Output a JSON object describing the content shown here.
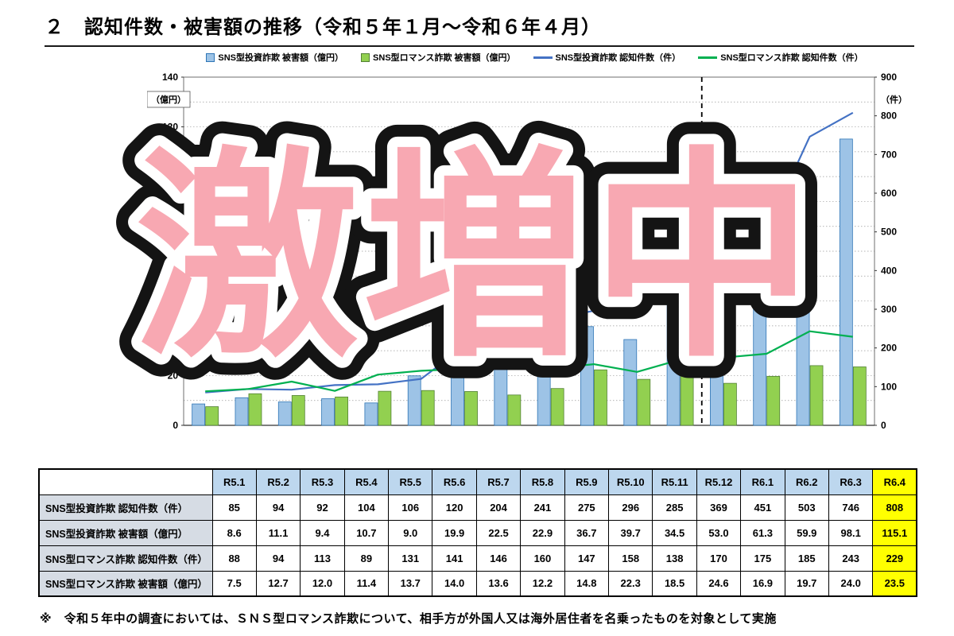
{
  "title": "２　認知件数・被害額の推移（令和５年１月～令和６年４月）",
  "overlay_text": "激増中",
  "footnote": "※　令和５年中の調査においては、ＳＮＳ型ロマンス詐欺について、相手方が外国人又は海外居住者を名乗ったものを対象として実施",
  "chart_data": {
    "type": "combo",
    "categories": [
      "R5.1",
      "R5.2",
      "R5.3",
      "R5.4",
      "R5.5",
      "R5.6",
      "R5.7",
      "R5.8",
      "R5.9",
      "R5.10",
      "R5.11",
      "R5.12",
      "R6.1",
      "R6.2",
      "R6.3",
      "R6.4"
    ],
    "series": [
      {
        "name": "SNS型投資詐欺 被害額（億円）",
        "type": "bar",
        "axis": "left",
        "color": "#9DC3E6",
        "border": "#2E75B6",
        "values": [
          8.6,
          11.1,
          9.4,
          10.7,
          9.0,
          19.9,
          22.5,
          22.9,
          36.7,
          39.7,
          34.5,
          53.0,
          61.3,
          59.9,
          98.1,
          115.1
        ]
      },
      {
        "name": "SNS型ロマンス詐欺 被害額（億円）",
        "type": "bar",
        "axis": "left",
        "color": "#92D050",
        "border": "#538135",
        "values": [
          7.5,
          12.7,
          12.0,
          11.4,
          13.7,
          14.0,
          13.6,
          12.2,
          14.8,
          22.3,
          18.5,
          24.6,
          16.9,
          19.7,
          24.0,
          23.5
        ]
      },
      {
        "name": "SNS型投資詐欺 認知件数（件）",
        "type": "line",
        "axis": "right",
        "color": "#4472C4",
        "values": [
          85,
          94,
          92,
          104,
          106,
          120,
          204,
          241,
          275,
          296,
          285,
          369,
          451,
          503,
          746,
          808
        ]
      },
      {
        "name": "SNS型ロマンス詐欺 認知件数（件）",
        "type": "line",
        "axis": "right",
        "color": "#00B050",
        "values": [
          88,
          94,
          113,
          89,
          131,
          141,
          146,
          160,
          147,
          158,
          138,
          170,
          175,
          185,
          243,
          229
        ]
      }
    ],
    "left_axis": {
      "unit": "（億円）",
      "min": 0,
      "max": 140,
      "step": 20,
      "minor_step": 10
    },
    "right_axis": {
      "unit": "（件）",
      "min": 0,
      "max": 900,
      "step": 100
    },
    "divider_after_index": 12,
    "grid": true,
    "legend_position": "top"
  },
  "table": {
    "corner_label": "",
    "columns": [
      "R5.1",
      "R5.2",
      "R5.3",
      "R5.4",
      "R5.5",
      "R5.6",
      "R5.7",
      "R5.8",
      "R5.9",
      "R5.10",
      "R5.11",
      "R5.12",
      "R6.1",
      "R6.2",
      "R6.3",
      "R6.4"
    ],
    "highlight_column": "R6.4",
    "rows": [
      {
        "label": "SNS型投資詐欺 認知件数（件）",
        "values": [
          "85",
          "94",
          "92",
          "104",
          "106",
          "120",
          "204",
          "241",
          "275",
          "296",
          "285",
          "369",
          "451",
          "503",
          "746",
          "808"
        ]
      },
      {
        "label": "SNS型投資詐欺 被害額（億円）",
        "values": [
          "8.6",
          "11.1",
          "9.4",
          "10.7",
          "9.0",
          "19.9",
          "22.5",
          "22.9",
          "36.7",
          "39.7",
          "34.5",
          "53.0",
          "61.3",
          "59.9",
          "98.1",
          "115.1"
        ]
      },
      {
        "label": "SNS型ロマンス詐欺 認知件数（件）",
        "values": [
          "88",
          "94",
          "113",
          "89",
          "131",
          "141",
          "146",
          "160",
          "147",
          "158",
          "138",
          "170",
          "175",
          "185",
          "243",
          "229"
        ]
      },
      {
        "label": "SNS型ロマンス詐欺 被害額（億円）",
        "values": [
          "7.5",
          "12.7",
          "12.0",
          "11.4",
          "13.7",
          "14.0",
          "13.6",
          "12.2",
          "14.8",
          "22.3",
          "18.5",
          "24.6",
          "16.9",
          "19.7",
          "24.0",
          "23.5"
        ]
      }
    ]
  },
  "colors": {
    "highlight_yellow": "#FFFF00",
    "table_header_blue": "#BDD7EE",
    "table_label_gray": "#D6DCE4",
    "overlay_pink": "#F8A8B2"
  }
}
